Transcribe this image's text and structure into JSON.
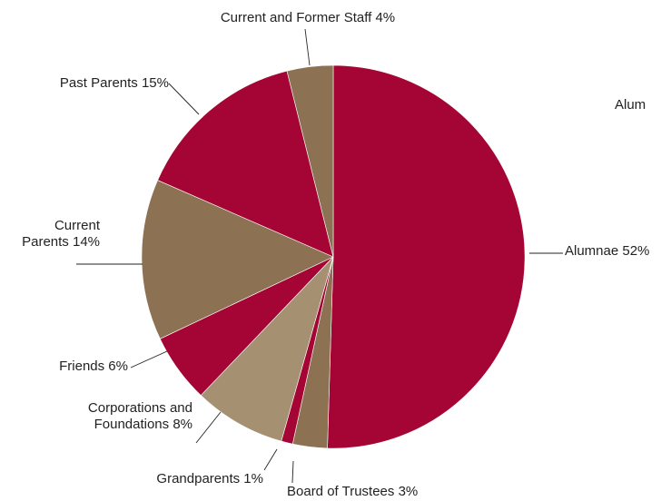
{
  "chart_data": {
    "type": "pie",
    "start_angle_deg": 0,
    "direction": "clockwise",
    "slices": [
      {
        "label": "Alumnae",
        "lines": [
          "Alumnae 52%"
        ],
        "value": 52,
        "color": "#A50534"
      },
      {
        "label": "Board of Trustees",
        "lines": [
          "Board of Trustees 3%"
        ],
        "value": 3,
        "color": "#8C7152"
      },
      {
        "label": "Grandparents",
        "lines": [
          "Grandparents 1%"
        ],
        "value": 1,
        "color": "#A50534"
      },
      {
        "label": "Corporations and Foundations",
        "lines": [
          "Corporations and",
          "Foundations 8%"
        ],
        "value": 8,
        "color": "#A59072"
      },
      {
        "label": "Friends",
        "lines": [
          "Friends 6%"
        ],
        "value": 6,
        "color": "#A50534"
      },
      {
        "label": "Current Parents",
        "lines": [
          "Current",
          "Parents 14%"
        ],
        "value": 14,
        "color": "#8C7152"
      },
      {
        "label": "Past Parents",
        "lines": [
          "Past Parents 15%"
        ],
        "value": 15,
        "color": "#A50534"
      },
      {
        "label": "Current and Former Staff",
        "lines": [
          "Current and Former Staff 4%"
        ],
        "value": 4,
        "color": "#8C7152"
      }
    ],
    "clipped_text": "Alum"
  }
}
